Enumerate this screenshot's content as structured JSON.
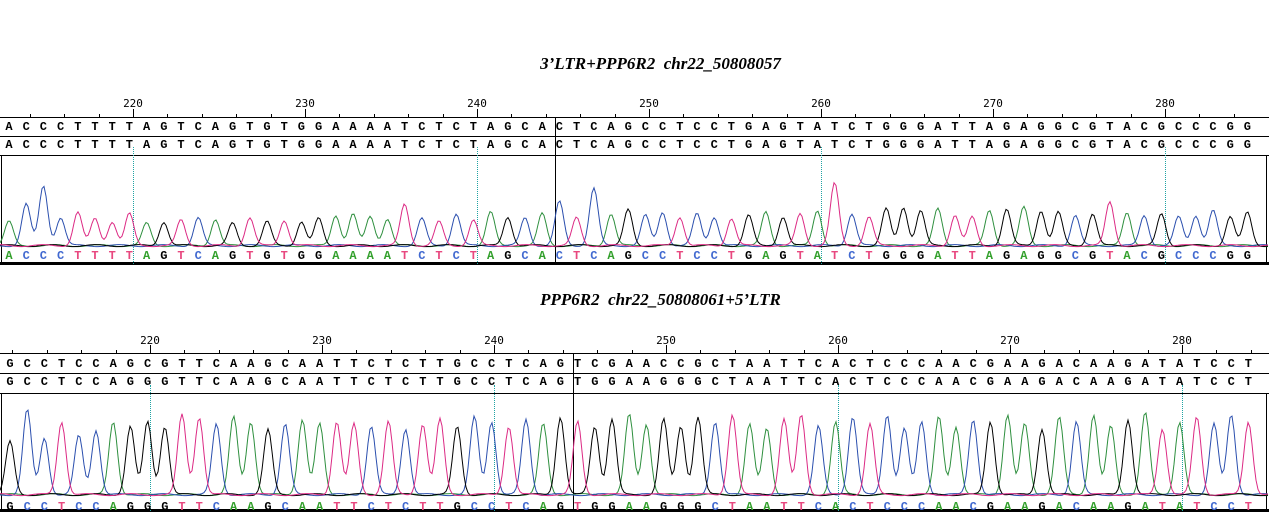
{
  "palette": {
    "A": "#2e8f3e",
    "C": "#2b4fae",
    "G": "#000000",
    "T": "#dc2a84",
    "guide": "#1fa3a3",
    "letter_A": "#33a02c",
    "letter_C": "#4169d0",
    "letter_G": "#000000",
    "letter_T": "#e8487f",
    "text": "#000000"
  },
  "chart_data": [
    {
      "type": "line",
      "kind": "sanger-chromatogram",
      "title": "3’LTR+PPP6R2  chr22_50808057",
      "x_axis": {
        "tick_labels": [
          "220",
          "230",
          "240",
          "250",
          "260",
          "270",
          "280"
        ],
        "guide_lines_at": [
          220,
          240,
          260,
          280
        ]
      },
      "reference_sequence": "ACCCTTTTAGTCAGTGTGGAAAATCTCTAGCACTCAGCCTCCTGAGTATCTGGGATTAGAGGCGTACGCCCGG",
      "aligned_sequence": "ACCCTTTTAGTCAGTGTGGAAAATCTCTAGCACTCAGCCTCCTGAGTATCTGGGATTAGAGGCGTACGCCCGG",
      "called_sequence": "ACCCTTTTAGTCAGTGTGGAAAATCTCTAGCACTCAGCCTCCTGAGTATCTGGGATTAGAGGCGTACGCCCGG",
      "junction_after_base": 32,
      "channels": [
        "A",
        "C",
        "G",
        "T"
      ],
      "peak_heights_rel": [
        0.3,
        0.52,
        0.75,
        0.35,
        0.42,
        0.34,
        0.3,
        0.4,
        0.28,
        0.3,
        0.32,
        0.35,
        0.33,
        0.28,
        0.35,
        0.3,
        0.32,
        0.3,
        0.34,
        0.38,
        0.4,
        0.36,
        0.34,
        0.52,
        0.34,
        0.3,
        0.4,
        0.32,
        0.42,
        0.36,
        0.35,
        0.4,
        0.55,
        0.35,
        0.72,
        0.4,
        0.45,
        0.38,
        0.42,
        0.36,
        0.4,
        0.36,
        0.34,
        0.38,
        0.42,
        0.36,
        0.4,
        0.44,
        0.78,
        0.4,
        0.36,
        0.46,
        0.48,
        0.44,
        0.46,
        0.38,
        0.36,
        0.44,
        0.46,
        0.48,
        0.44,
        0.42,
        0.38,
        0.4,
        0.55,
        0.42,
        0.38,
        0.4,
        0.36,
        0.38,
        0.44,
        0.36,
        0.42
      ]
    },
    {
      "type": "line",
      "kind": "sanger-chromatogram",
      "title": "PPP6R2  chr22_50808061+5’LTR",
      "x_axis": {
        "tick_labels": [
          "220",
          "230",
          "240",
          "250",
          "260",
          "270",
          "280"
        ],
        "guide_lines_at": [
          220,
          240,
          260,
          280
        ]
      },
      "reference_sequence": "GCCTCCAGCGTTCAAGCAATTCTCTTGCCTCAGTCGAACCGCTAATTCACTCCCAACGAAGACAAGATATCCT",
      "aligned_sequence": "GCCTCCAGGGTTCAAGCAATTCTCTTGCCTCAGTGGAAGGGCTAATTCACTCCCAACGAAGACAAGATATCCT",
      "called_sequence": "GCCTCCAGGGTTCAAGCAATTCTCTTGCCTCAGTGGAAGGGCTAATTCACTCCCAACGAAGACAAGATATCCT",
      "junction_after_base": 33,
      "channels": [
        "A",
        "C",
        "G",
        "T"
      ],
      "peak_heights_rel": [
        0.45,
        0.72,
        0.48,
        0.62,
        0.5,
        0.55,
        0.62,
        0.58,
        0.62,
        0.58,
        0.68,
        0.66,
        0.6,
        0.66,
        0.62,
        0.55,
        0.6,
        0.64,
        0.6,
        0.62,
        0.6,
        0.58,
        0.62,
        0.56,
        0.6,
        0.64,
        0.58,
        0.66,
        0.62,
        0.58,
        0.64,
        0.6,
        0.66,
        0.62,
        0.58,
        0.64,
        0.68,
        0.6,
        0.64,
        0.58,
        0.66,
        0.62,
        0.68,
        0.6,
        0.56,
        0.64,
        0.68,
        0.58,
        0.62,
        0.66,
        0.6,
        0.68,
        0.56,
        0.62,
        0.66,
        0.58,
        0.64,
        0.62,
        0.68,
        0.6,
        0.56,
        0.66,
        0.62,
        0.68,
        0.58,
        0.64,
        0.7,
        0.56,
        0.62,
        0.66,
        0.6,
        0.68,
        0.62
      ]
    }
  ]
}
